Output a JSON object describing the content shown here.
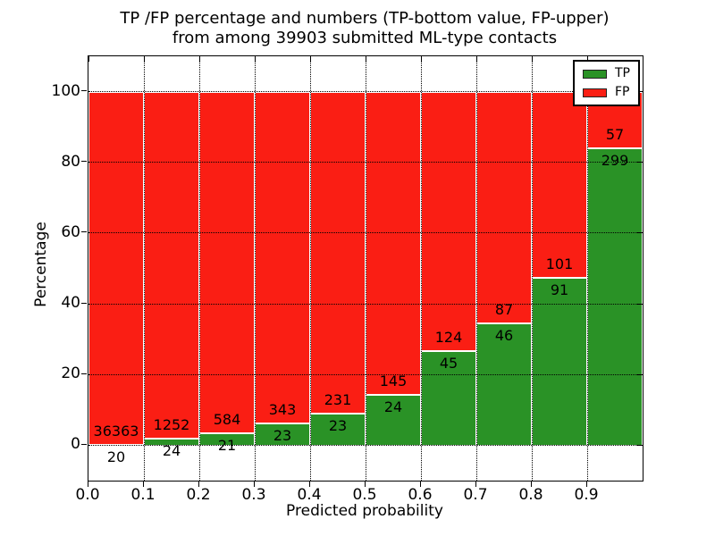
{
  "chart_data": {
    "type": "bar",
    "stacked": true,
    "normalized_to_percent": true,
    "title_line1": "TP /FP percentage and numbers (TP-bottom value, FP-upper)",
    "title_line2": "from among 39903 submitted ML-type contacts",
    "xlabel": "Predicted probability",
    "ylabel": "Percentage",
    "total_contacts": 39903,
    "bin_edges": [
      0.0,
      0.1,
      0.2,
      0.3,
      0.4,
      0.5,
      0.6,
      0.7,
      0.8,
      0.9,
      1.0
    ],
    "xtick_labels": [
      "0.0",
      "0.1",
      "0.2",
      "0.3",
      "0.4",
      "0.5",
      "0.6",
      "0.7",
      "0.8",
      "0.9"
    ],
    "ytick_values": [
      0,
      20,
      40,
      60,
      80,
      100
    ],
    "xlim": [
      0.0,
      1.0
    ],
    "ylim": [
      -10,
      110
    ],
    "grid": true,
    "grid_style": "dotted",
    "series": [
      {
        "name": "TP",
        "color": "#2a9226",
        "counts": [
          20,
          24,
          21,
          23,
          23,
          24,
          45,
          46,
          91,
          299
        ]
      },
      {
        "name": "FP",
        "color": "#fa1e14",
        "counts": [
          36363,
          1252,
          584,
          343,
          231,
          145,
          124,
          87,
          101,
          57
        ]
      }
    ],
    "tp_percent": [
      0.05,
      1.88,
      3.47,
      6.28,
      9.06,
      14.2,
      26.63,
      34.59,
      47.4,
      83.99
    ],
    "legend": {
      "position": "upper right",
      "entries": [
        "TP",
        "FP"
      ]
    }
  }
}
